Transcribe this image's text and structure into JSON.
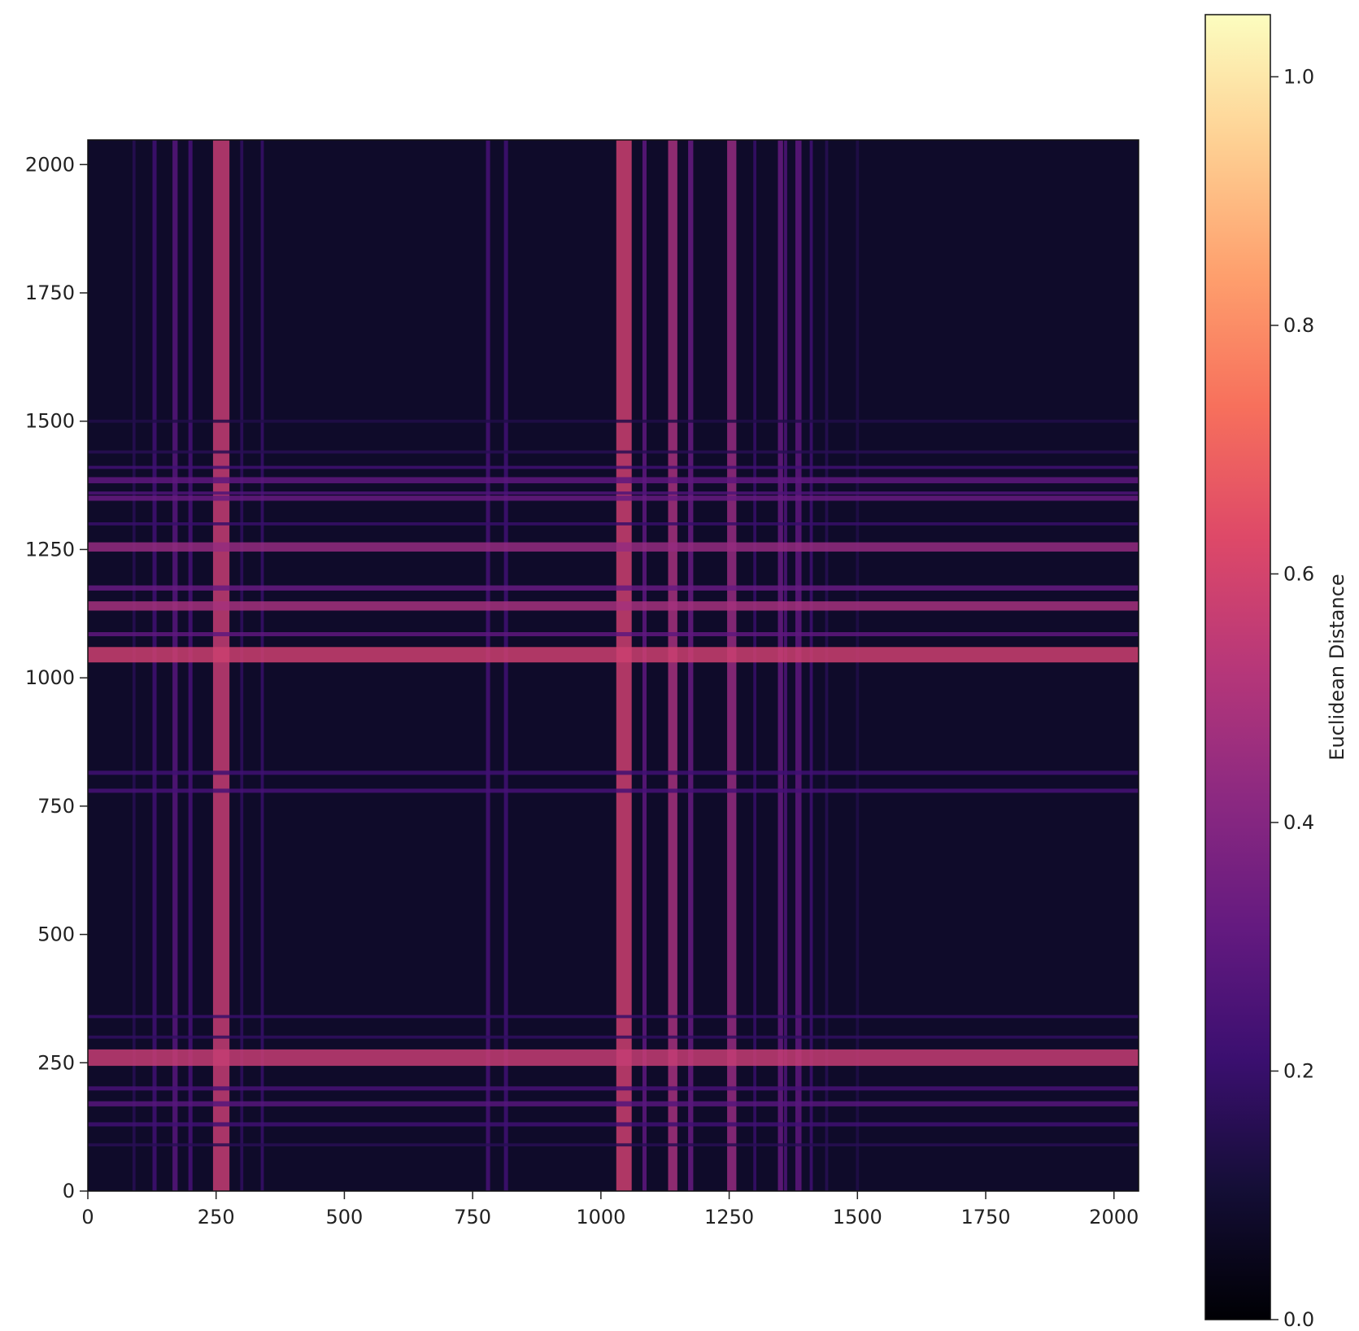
{
  "chart_data": {
    "type": "heatmap",
    "title": "",
    "xlabel": "",
    "ylabel": "",
    "xlim": [
      0,
      2048
    ],
    "ylim": [
      0,
      2048
    ],
    "x_ticks": [
      0,
      250,
      500,
      750,
      1000,
      1250,
      1500,
      1750,
      2000
    ],
    "y_ticks": [
      0,
      250,
      500,
      750,
      1000,
      1250,
      1500,
      1750,
      2000
    ],
    "x_tick_labels": [
      "0",
      "250",
      "500",
      "750",
      "1000",
      "1250",
      "1500",
      "1750",
      "2000"
    ],
    "y_tick_labels": [
      "0",
      "250",
      "500",
      "750",
      "1000",
      "1250",
      "1500",
      "1750",
      "2000"
    ],
    "colormap": "magma",
    "background_value": 0.08,
    "bands": [
      {
        "center": 260,
        "width": 32,
        "value": 0.56
      },
      {
        "center": 1045,
        "width": 30,
        "value": 0.58
      },
      {
        "center": 1140,
        "width": 18,
        "value": 0.48
      },
      {
        "center": 1255,
        "width": 18,
        "value": 0.44
      },
      {
        "center": 1175,
        "width": 10,
        "value": 0.32
      },
      {
        "center": 1085,
        "width": 8,
        "value": 0.3
      },
      {
        "center": 1350,
        "width": 10,
        "value": 0.32
      },
      {
        "center": 1385,
        "width": 12,
        "value": 0.3
      },
      {
        "center": 1360,
        "width": 6,
        "value": 0.26
      },
      {
        "center": 1410,
        "width": 6,
        "value": 0.22
      },
      {
        "center": 170,
        "width": 10,
        "value": 0.28
      },
      {
        "center": 200,
        "width": 8,
        "value": 0.24
      },
      {
        "center": 130,
        "width": 8,
        "value": 0.22
      },
      {
        "center": 340,
        "width": 6,
        "value": 0.2
      },
      {
        "center": 780,
        "width": 8,
        "value": 0.24
      },
      {
        "center": 815,
        "width": 8,
        "value": 0.22
      },
      {
        "center": 300,
        "width": 6,
        "value": 0.18
      },
      {
        "center": 1300,
        "width": 6,
        "value": 0.2
      },
      {
        "center": 1440,
        "width": 6,
        "value": 0.16
      },
      {
        "center": 90,
        "width": 6,
        "value": 0.16
      },
      {
        "center": 1500,
        "width": 6,
        "value": 0.14
      }
    ],
    "colorbar": {
      "label": "Euclidean Distance",
      "range": [
        0.0,
        1.05
      ],
      "ticks": [
        0.0,
        0.2,
        0.4,
        0.6,
        0.8,
        1.0
      ],
      "tick_labels": [
        "0.0",
        "0.2",
        "0.4",
        "0.6",
        "0.8",
        "1.0"
      ]
    }
  }
}
